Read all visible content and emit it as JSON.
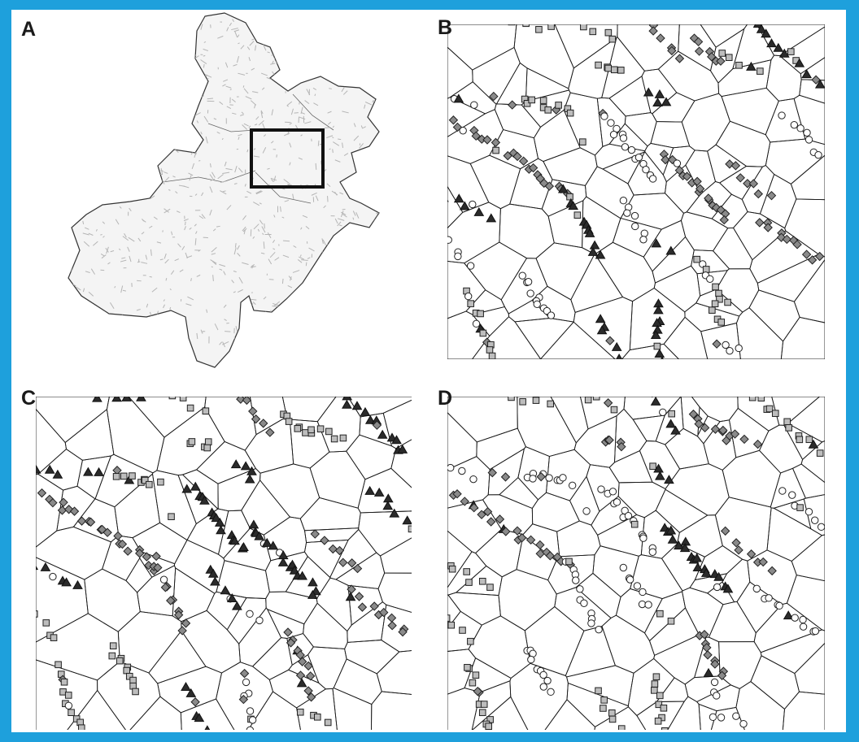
{
  "figure": {
    "frame_color": "#1ea0dc",
    "panels": [
      {
        "id": "A",
        "label": "A",
        "kind": "map-overview"
      },
      {
        "id": "B",
        "label": "B",
        "kind": "voronoi-classification"
      },
      {
        "id": "C",
        "label": "C",
        "kind": "voronoi-classification"
      },
      {
        "id": "D",
        "label": "D",
        "kind": "voronoi-classification"
      }
    ]
  },
  "legend_marker_types": [
    {
      "name": "open-circle",
      "fill": "#ffffff",
      "stroke": "#222222"
    },
    {
      "name": "gray-square",
      "fill": "#bdbdbd",
      "stroke": "#222222"
    },
    {
      "name": "gray-diamond",
      "fill": "#8a8a8a",
      "stroke": "#222222"
    },
    {
      "name": "black-triangle",
      "fill": "#2b2b2b",
      "stroke": "#111111"
    }
  ],
  "colors": {
    "cell_lines": "#1a1a1a",
    "map_fill": "#f4f4f4",
    "map_texture": "#b5b5b5",
    "highlight_box": "#111111"
  }
}
